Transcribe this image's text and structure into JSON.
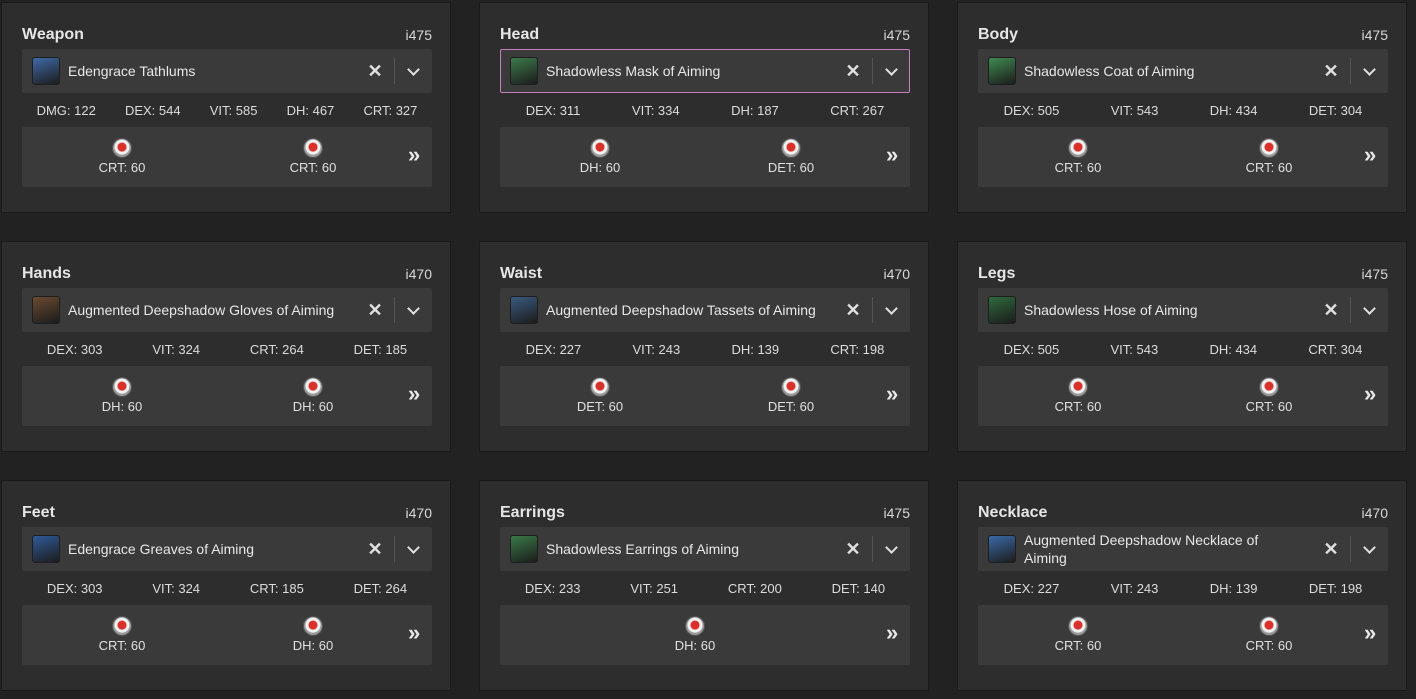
{
  "slots": [
    {
      "slot": "Weapon",
      "ilvl": "i475",
      "item": "Edengrace Tathlums",
      "icon": "tathlums-icon",
      "icon_color": "#3f6aa8",
      "focused": false,
      "stats": [
        "DMG: 122",
        "DEX: 544",
        "VIT: 585",
        "DH: 467",
        "CRT: 327"
      ],
      "materia": [
        "CRT: 60",
        "CRT: 60"
      ]
    },
    {
      "slot": "Head",
      "ilvl": "i475",
      "item": "Shadowless Mask of Aiming",
      "icon": "mask-icon",
      "icon_color": "#3c7a4a",
      "focused": true,
      "stats": [
        "DEX: 311",
        "VIT: 334",
        "DH: 187",
        "CRT: 267"
      ],
      "materia": [
        "DH: 60",
        "DET: 60"
      ]
    },
    {
      "slot": "Body",
      "ilvl": "i475",
      "item": "Shadowless Coat of Aiming",
      "icon": "coat-icon",
      "icon_color": "#3f8a50",
      "focused": false,
      "stats": [
        "DEX: 505",
        "VIT: 543",
        "DH: 434",
        "DET: 304"
      ],
      "materia": [
        "CRT: 60",
        "CRT: 60"
      ]
    },
    {
      "slot": "Hands",
      "ilvl": "i470",
      "item": "Augmented Deepshadow Gloves of Aiming",
      "icon": "gloves-icon",
      "icon_color": "#6a4a30",
      "focused": false,
      "stats": [
        "DEX: 303",
        "VIT: 324",
        "CRT: 264",
        "DET: 185"
      ],
      "materia": [
        "DH: 60",
        "DH: 60"
      ]
    },
    {
      "slot": "Waist",
      "ilvl": "i470",
      "item": "Augmented Deepshadow Tassets of Aiming",
      "icon": "tassets-icon",
      "icon_color": "#3a5a80",
      "focused": false,
      "stats": [
        "DEX: 227",
        "VIT: 243",
        "DH: 139",
        "CRT: 198"
      ],
      "materia": [
        "DET: 60",
        "DET: 60"
      ]
    },
    {
      "slot": "Legs",
      "ilvl": "i475",
      "item": "Shadowless Hose of Aiming",
      "icon": "hose-icon",
      "icon_color": "#2f6a3c",
      "focused": false,
      "stats": [
        "DEX: 505",
        "VIT: 543",
        "DH: 434",
        "CRT: 304"
      ],
      "materia": [
        "CRT: 60",
        "CRT: 60"
      ]
    },
    {
      "slot": "Feet",
      "ilvl": "i470",
      "item": "Edengrace Greaves of Aiming",
      "icon": "greaves-icon",
      "icon_color": "#2f5a9a",
      "focused": false,
      "stats": [
        "DEX: 303",
        "VIT: 324",
        "CRT: 185",
        "DET: 264"
      ],
      "materia": [
        "CRT: 60",
        "DH: 60"
      ]
    },
    {
      "slot": "Earrings",
      "ilvl": "i475",
      "item": "Shadowless Earrings of Aiming",
      "icon": "earrings-icon",
      "icon_color": "#3a7a48",
      "focused": false,
      "stats": [
        "DEX: 233",
        "VIT: 251",
        "CRT: 200",
        "DET: 140"
      ],
      "materia": [
        "DH: 60"
      ]
    },
    {
      "slot": "Necklace",
      "ilvl": "i470",
      "item": "Augmented Deepshadow Necklace of Aiming",
      "icon": "necklace-icon",
      "icon_color": "#3a6aa8",
      "focused": false,
      "stats": [
        "DEX: 227",
        "VIT: 243",
        "DH: 139",
        "DET: 198"
      ],
      "materia": [
        "CRT: 60",
        "CRT: 60"
      ]
    }
  ],
  "controls": {
    "clear_glyph": "✕",
    "more_glyph": "»"
  }
}
